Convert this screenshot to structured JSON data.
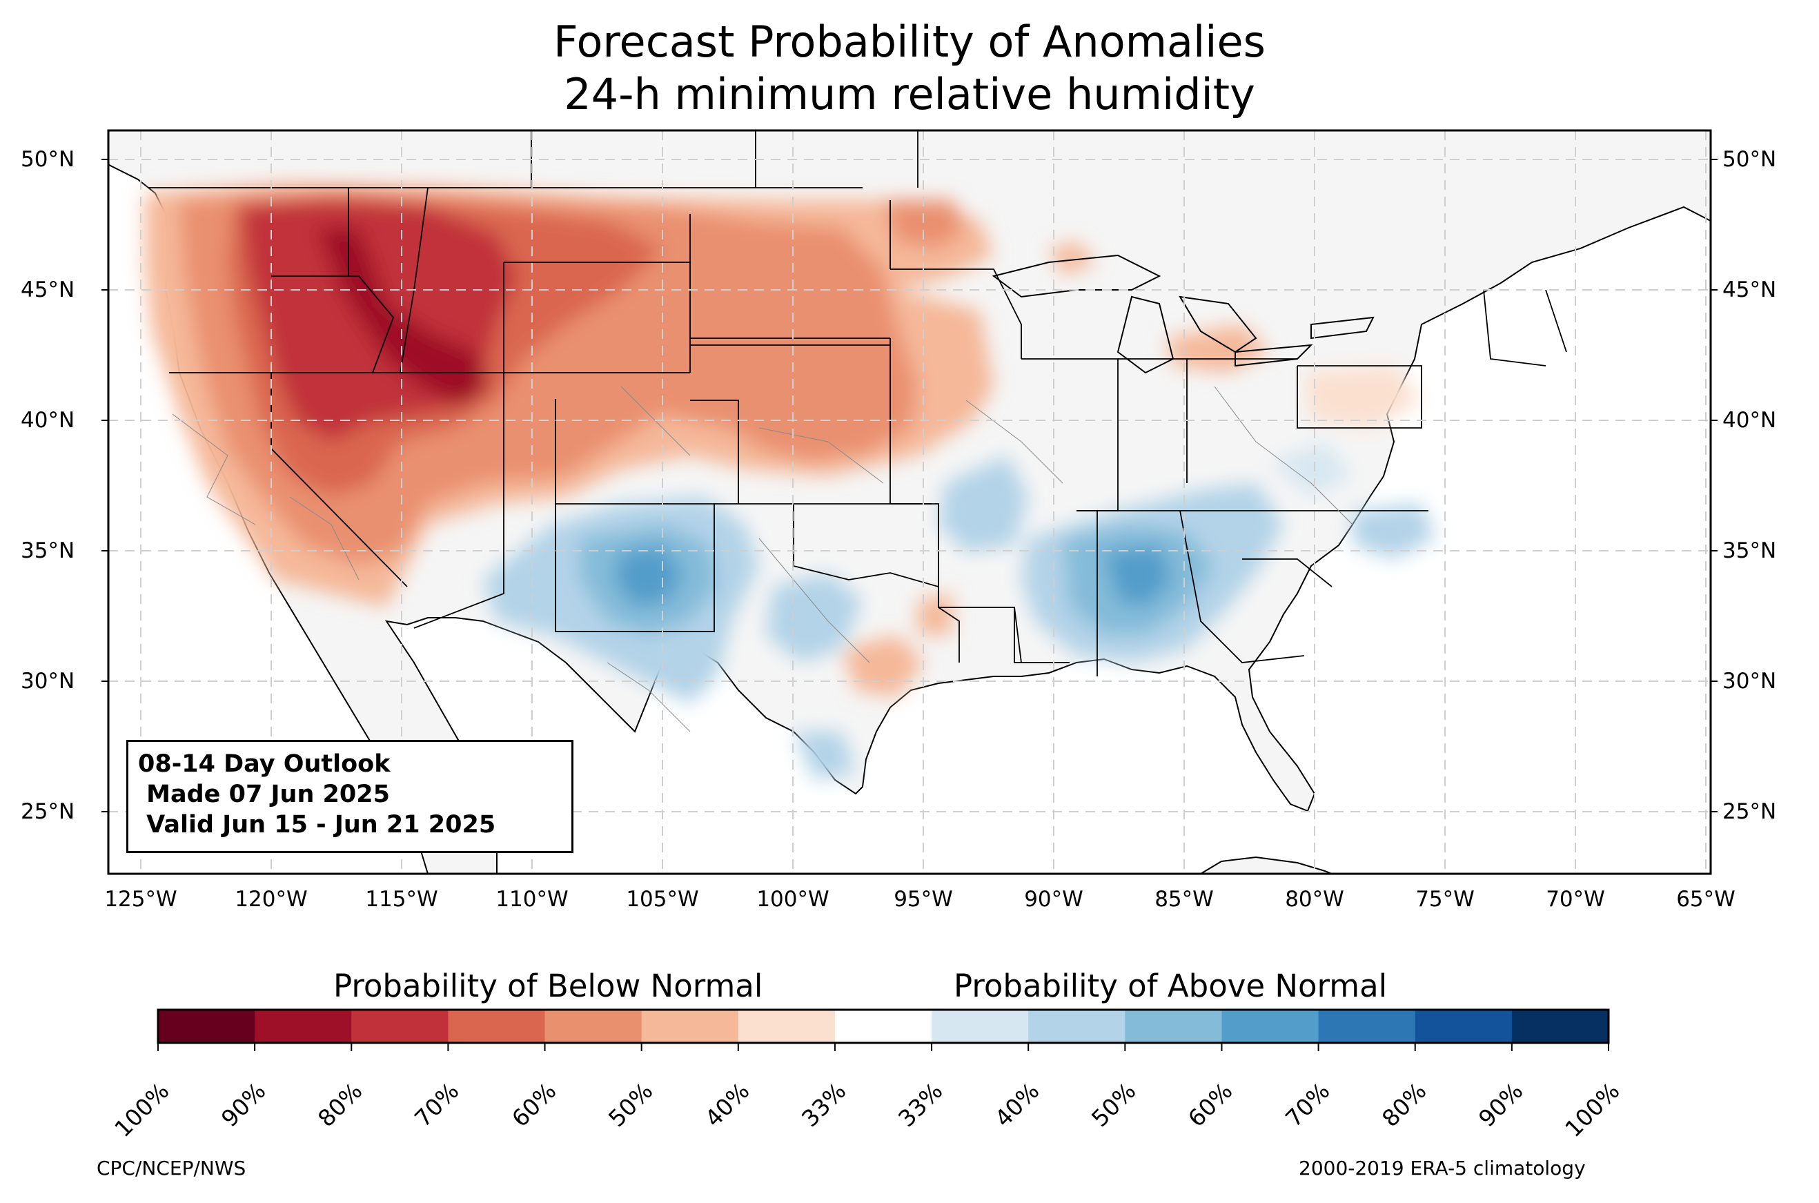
{
  "title": {
    "line1": "Forecast Probability of Anomalies",
    "line2": "24-h minimum relative humidity"
  },
  "map": {
    "lat_ticks_left": [
      "50°N",
      "45°N",
      "40°N",
      "35°N",
      "30°N",
      "25°N"
    ],
    "lat_ticks_right": [
      "50°N",
      "45°N",
      "40°N",
      "35°N",
      "30°N",
      "25°N"
    ],
    "lon_ticks": [
      "125°W",
      "120°W",
      "115°W",
      "110°W",
      "105°W",
      "100°W",
      "95°W",
      "90°W",
      "85°W",
      "80°W",
      "75°W",
      "70°W",
      "65°W"
    ],
    "land_color": "#f5f5f5",
    "gridline_style": "dashed light gray"
  },
  "infobox": {
    "line1": "08-14 Day Outlook",
    "line2": " Made 07 Jun 2025",
    "line3": " Valid Jun 15 - Jun 21 2025"
  },
  "colorbar": {
    "below_label": "Probability of Below Normal",
    "above_label": "Probability of Above Normal",
    "colors": [
      "#67001f",
      "#9e1028",
      "#c1313a",
      "#da6650",
      "#e9906f",
      "#f5b899",
      "#fbe0d0",
      "#ffffff",
      "#d7e7f1",
      "#b3d3e8",
      "#84bbd9",
      "#539dca",
      "#2c77b4",
      "#13539b",
      "#053061"
    ],
    "tick_labels": [
      "100%",
      "90%",
      "80%",
      "70%",
      "60%",
      "50%",
      "40%",
      "33%",
      "33%",
      "40%",
      "50%",
      "60%",
      "70%",
      "80%",
      "90%",
      "100%"
    ]
  },
  "footer": {
    "left": "CPC/NCEP/NWS",
    "right": "2000-2019 ERA-5 climatology"
  }
}
